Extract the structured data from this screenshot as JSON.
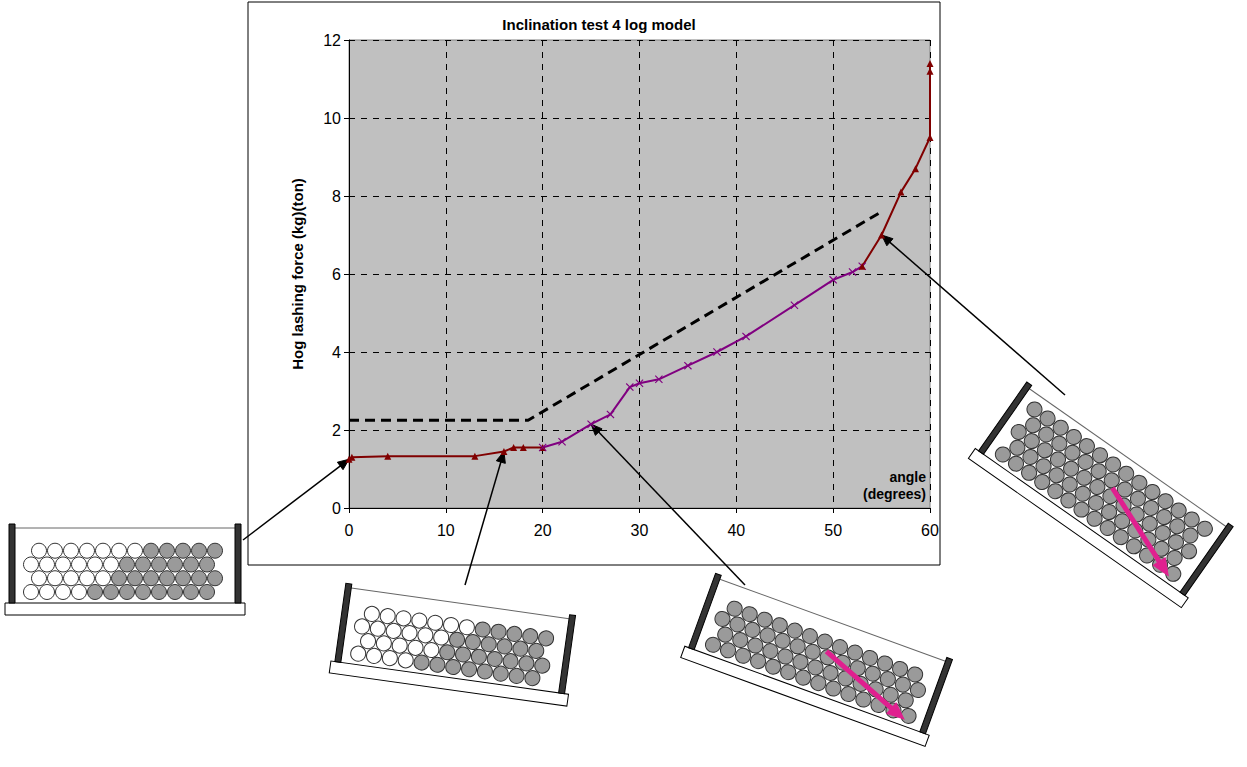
{
  "chart_data": {
    "type": "line",
    "title": "Inclination test 4 log model",
    "x_label": "angle (degrees)",
    "y_label": "Hog lashing force (kg)(ton)",
    "xlim": [
      0,
      60
    ],
    "xticks": [
      0,
      10,
      20,
      30,
      40,
      50,
      60
    ],
    "ylim": [
      0,
      12
    ],
    "yticks": [
      0,
      2,
      4,
      6,
      8,
      10,
      12
    ],
    "grid": true,
    "series": [
      {
        "color": "#800000",
        "marker": "triangle",
        "line_style": "solid",
        "x": [
          0,
          0.3,
          4,
          13,
          16,
          17,
          18,
          20
        ],
        "values": [
          1.25,
          1.3,
          1.33,
          1.33,
          1.45,
          1.55,
          1.55,
          1.55
        ]
      },
      {
        "color": "#800080",
        "marker": "x",
        "line_style": "solid",
        "x": [
          20,
          22,
          25,
          27,
          29,
          30,
          32,
          35,
          38,
          41,
          46,
          50,
          52,
          53
        ],
        "values": [
          1.55,
          1.7,
          2.15,
          2.4,
          3.1,
          3.2,
          3.3,
          3.65,
          4.0,
          4.4,
          5.2,
          5.85,
          6.05,
          6.2
        ]
      },
      {
        "color": "#800000",
        "marker": "triangle",
        "line_style": "solid",
        "x": [
          53,
          55,
          57,
          58.5,
          60,
          60,
          60
        ],
        "values": [
          6.2,
          7.0,
          8.1,
          8.7,
          9.5,
          11.2,
          11.4
        ]
      },
      {
        "color": "#000000",
        "marker": "none",
        "line_style": "dashed",
        "x": [
          0,
          18.5,
          55
        ],
        "values": [
          2.25,
          2.25,
          7.6
        ]
      }
    ]
  }
}
